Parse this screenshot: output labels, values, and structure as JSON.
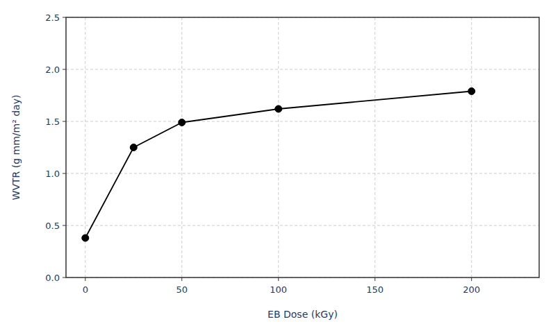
{
  "chart_data": {
    "type": "line",
    "x": [
      0,
      25,
      50,
      100,
      200
    ],
    "values": [
      0.38,
      1.25,
      1.49,
      1.62,
      1.79
    ],
    "xlabel": "EB Dose (kGy)",
    "ylabel": "WVTR (g mm/m² day)",
    "xlim": [
      -10,
      235
    ],
    "ylim": [
      0.0,
      2.5
    ],
    "xticks": [
      0,
      50,
      100,
      150,
      200
    ],
    "yticks": [
      {
        "value": 0.0,
        "label": "0.0"
      },
      0.5,
      {
        "value": 1.0,
        "label": "1.0"
      },
      1.5,
      {
        "value": 2.0,
        "label": "2.0"
      },
      2.5
    ],
    "grid": true,
    "color": "#000000",
    "marker": "circle"
  }
}
